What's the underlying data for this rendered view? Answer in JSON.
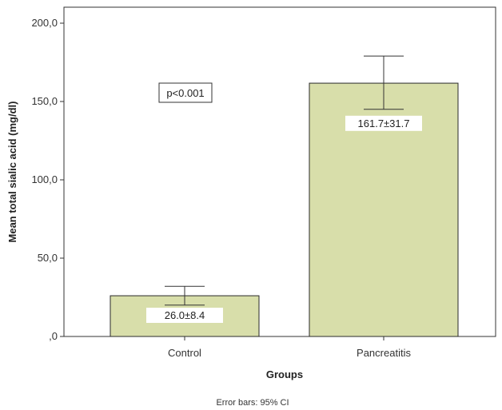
{
  "chart_data": {
    "type": "bar",
    "title": "",
    "xlabel": "Groups",
    "ylabel": "Mean total sialic acid (mg/dl)",
    "categories": [
      "Control",
      "Pancreatitis"
    ],
    "values": [
      26.0,
      161.7
    ],
    "error_bars": [
      {
        "low": 20.0,
        "high": 32.0
      },
      {
        "low": 145.0,
        "high": 179.0
      }
    ],
    "data_labels": [
      "26.0±8.4",
      "161.7±31.7"
    ],
    "ylim": [
      0,
      200
    ],
    "yticks": [
      0,
      50,
      100,
      150,
      200
    ],
    "ytick_labels": [
      ",0",
      "50,0",
      "100,0",
      "150,0",
      "200,0"
    ],
    "annotation": "p<0.001",
    "footnote": "Error bars: 95% CI",
    "grid": false,
    "legend": "none",
    "colors": {
      "bar_fill": "#d8deaa",
      "bar_stroke": "#2a2a2a",
      "axis": "#333333"
    }
  }
}
